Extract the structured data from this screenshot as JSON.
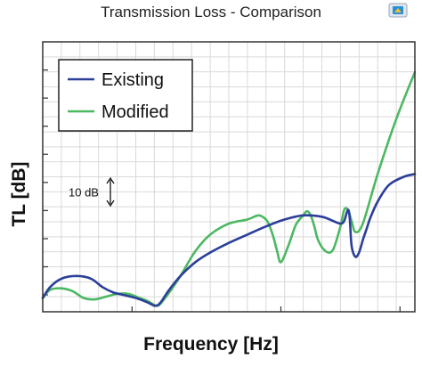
{
  "chart_data": {
    "type": "line",
    "title": "Transmission Loss - Comparison",
    "xlabel": "Frequency [Hz]",
    "ylabel": "TL [dB]",
    "grid": true,
    "legend_position": "top-left",
    "x_tick_labels": false,
    "y_tick_labels": false,
    "scale_annotation": "10 dB",
    "x_range": [
      0,
      100
    ],
    "y_range": [
      -2,
      96
    ],
    "series": [
      {
        "name": "Existing",
        "color": "#2b3f99",
        "x": [
          0,
          2,
          5,
          9,
          13,
          16,
          19,
          22,
          25,
          28,
          30,
          31,
          32,
          34,
          37,
          41,
          45,
          50,
          55,
          60,
          65,
          70,
          75,
          78,
          80,
          81,
          82,
          82.5,
          83,
          84,
          85,
          86,
          87,
          88,
          90,
          93,
          97,
          100
        ],
        "y": [
          3,
          7,
          10,
          11,
          10,
          7,
          5,
          4,
          3,
          1.5,
          0.2,
          0.5,
          2,
          6,
          11,
          16,
          19.5,
          23,
          26,
          29,
          31.5,
          33,
          32.5,
          31,
          30,
          31,
          35,
          32,
          22,
          18,
          19.5,
          24,
          28,
          32,
          38,
          44,
          47,
          48
        ]
      },
      {
        "name": "Modified",
        "color": "#4cb861",
        "x": [
          0,
          2,
          5,
          8,
          11,
          14,
          17,
          20,
          23,
          26,
          28,
          30,
          31,
          32,
          34,
          37,
          41,
          45,
          50,
          55,
          58,
          60,
          61,
          62,
          63,
          64,
          66,
          68,
          70,
          71,
          72,
          73,
          74,
          76,
          78,
          80,
          81,
          82,
          83,
          84,
          86,
          90,
          95,
          100
        ],
        "y": [
          3,
          6,
          6.5,
          5.5,
          3,
          2.5,
          3.5,
          4.5,
          4.5,
          3,
          2,
          0.5,
          0.2,
          1.5,
          5,
          11,
          20,
          26,
          30,
          31.5,
          33,
          31.5,
          29,
          25,
          20,
          16,
          22,
          29.5,
          33,
          34.5,
          33,
          29,
          24,
          20,
          20.5,
          29,
          35,
          35,
          31,
          27,
          30,
          48,
          68,
          85
        ]
      }
    ]
  }
}
